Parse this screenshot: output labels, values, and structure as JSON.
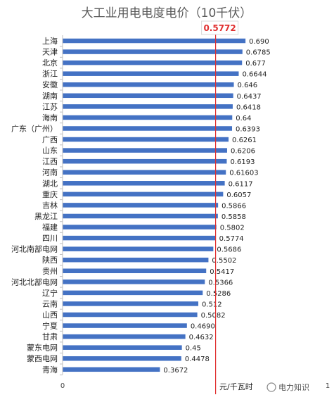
{
  "chart_data": {
    "type": "bar",
    "orientation": "horizontal",
    "title": "大工业用电电度电价（10千伏）",
    "unit": "元/千瓦时",
    "xlim": [
      0,
      1
    ],
    "x_ticks": [
      "0",
      "1"
    ],
    "bar_color": "#4472c4",
    "reference_line": {
      "value": 0.5772,
      "label": "0.5772",
      "color": "#e03030"
    },
    "categories": [
      "上海",
      "天津",
      "北京",
      "浙江",
      "安徽",
      "湖南",
      "江苏",
      "海南",
      "广东（广州）",
      "广西",
      "山东",
      "江西",
      "河南",
      "湖北",
      "重庆",
      "吉林",
      "黑龙江",
      "福建",
      "四川",
      "河北南部电网",
      "陕西",
      "贵州",
      "河北北部电网",
      "辽宁",
      "云南",
      "山西",
      "宁夏",
      "甘肃",
      "蒙东电网",
      "蒙西电网",
      "青海"
    ],
    "values": [
      0.69,
      0.6785,
      0.677,
      0.6644,
      0.646,
      0.6437,
      0.6418,
      0.64,
      0.6393,
      0.6261,
      0.6206,
      0.6193,
      0.61603,
      0.6117,
      0.6057,
      0.5866,
      0.5858,
      0.5802,
      0.5774,
      0.5686,
      0.5502,
      0.5417,
      0.5366,
      0.5286,
      0.512,
      0.5082,
      0.469,
      0.4632,
      0.45,
      0.4478,
      0.3672
    ],
    "value_labels": [
      "0.690",
      "0.6785",
      "0.677",
      "0.6644",
      "0.646",
      "0.6437",
      "0.6418",
      "0.64",
      "0.6393",
      "0.6261",
      "0.6206",
      "0.6193",
      "0.61603",
      "0.6117",
      "0.6057",
      "0.5866",
      "0.5858",
      "0.5802",
      "0.5774",
      "0.5686",
      "0.5502",
      "0.5417",
      "0.5366",
      "0.5286",
      "0.512",
      "0.5082",
      "0.4690",
      "0.4632",
      "0.45",
      "0.4478",
      "0.3672"
    ]
  },
  "watermark": "电力知识"
}
